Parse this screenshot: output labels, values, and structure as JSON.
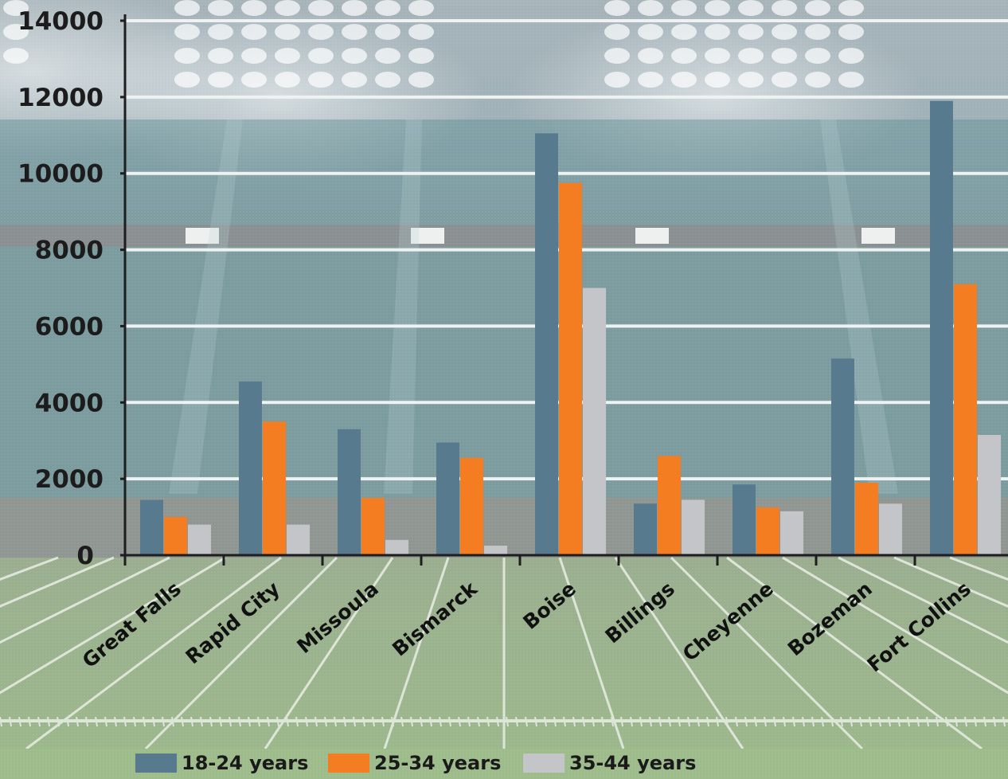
{
  "chart_data": {
    "type": "bar",
    "title": "",
    "xlabel": "",
    "ylabel": "",
    "categories": [
      "Great Falls",
      "Rapid City",
      "Missoula",
      "Bismarck",
      "Boise",
      "Billings",
      "Cheyenne",
      "Bozeman",
      "Fort Collins"
    ],
    "series": [
      {
        "name": "18-24 years",
        "color": "#587a8e",
        "values": [
          1450,
          4550,
          3300,
          2950,
          11050,
          1350,
          1850,
          5150,
          11900
        ]
      },
      {
        "name": "25-34 years",
        "color": "#f47d22",
        "values": [
          1000,
          3500,
          1500,
          2550,
          9750,
          2600,
          1250,
          1900,
          7100
        ]
      },
      {
        "name": "35-44 years",
        "color": "#c3c5c8",
        "values": [
          800,
          800,
          400,
          250,
          7000,
          1450,
          1150,
          1350,
          3150
        ]
      }
    ],
    "ylim": [
      0,
      14000
    ],
    "yticks": [
      0,
      2000,
      4000,
      6000,
      8000,
      10000,
      12000,
      14000
    ],
    "grid": true,
    "legend_position": "bottom",
    "background": "football-stadium"
  }
}
